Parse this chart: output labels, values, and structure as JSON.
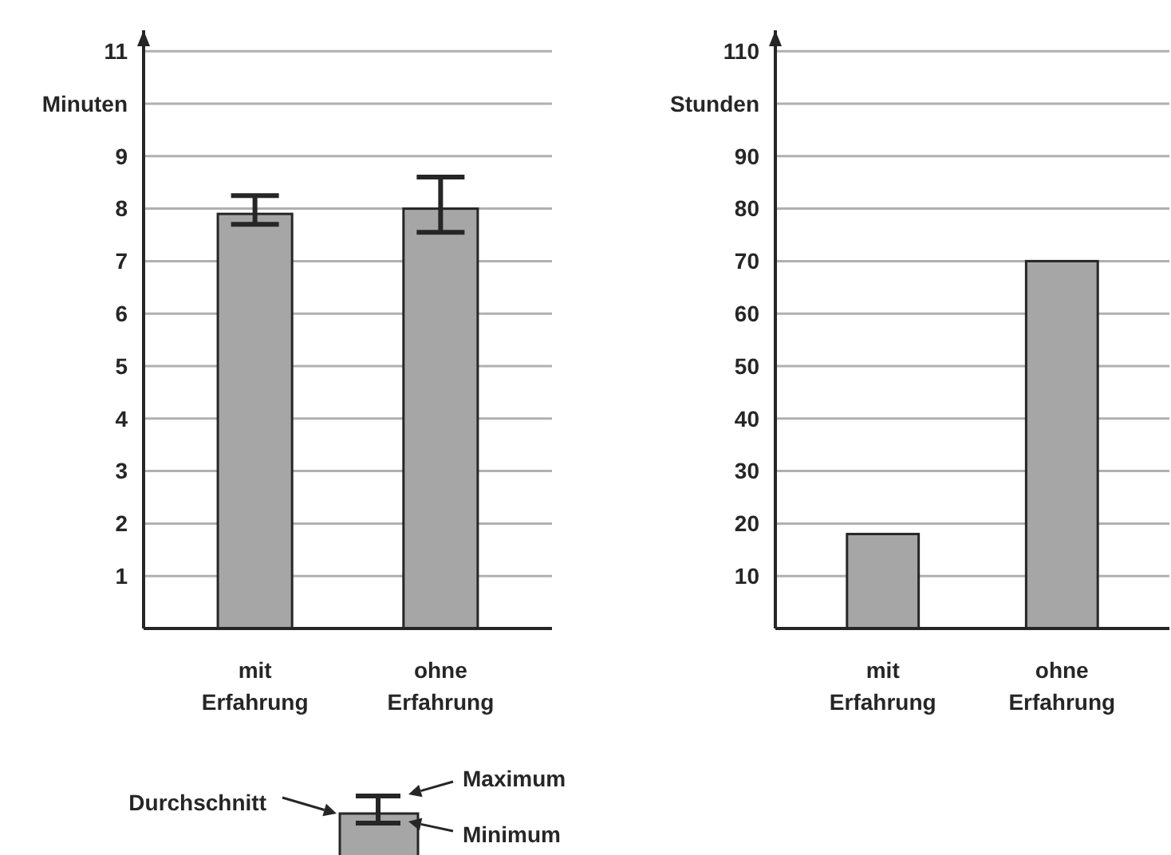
{
  "chart_data": [
    {
      "type": "bar",
      "ylabel": "Minuten",
      "categories": [
        "mit Erfahrung",
        "ohne Erfahrung"
      ],
      "values": [
        7.9,
        8.0
      ],
      "errors": [
        [
          7.7,
          8.25
        ],
        [
          7.55,
          8.6
        ]
      ],
      "color": "#a6a6a6",
      "ylim": [
        0,
        11.4
      ],
      "yticks": [
        1,
        2,
        3,
        4,
        5,
        6,
        7,
        8,
        9,
        {
          "value": 10,
          "label": null
        },
        11
      ],
      "grid": "y",
      "annotations": [
        "Durchschnitt",
        "Maximum",
        "Minimum"
      ]
    },
    {
      "type": "bar",
      "ylabel": "Stunden",
      "categories": [
        "mit Erfahrung",
        "ohne Erfahrung"
      ],
      "values": [
        18,
        70
      ],
      "color": "#a6a6a6",
      "ylim": [
        0,
        114
      ],
      "yticks": [
        10,
        20,
        30,
        40,
        50,
        60,
        70,
        80,
        90,
        {
          "value": 100,
          "label": null
        },
        110
      ],
      "grid": "y"
    }
  ]
}
